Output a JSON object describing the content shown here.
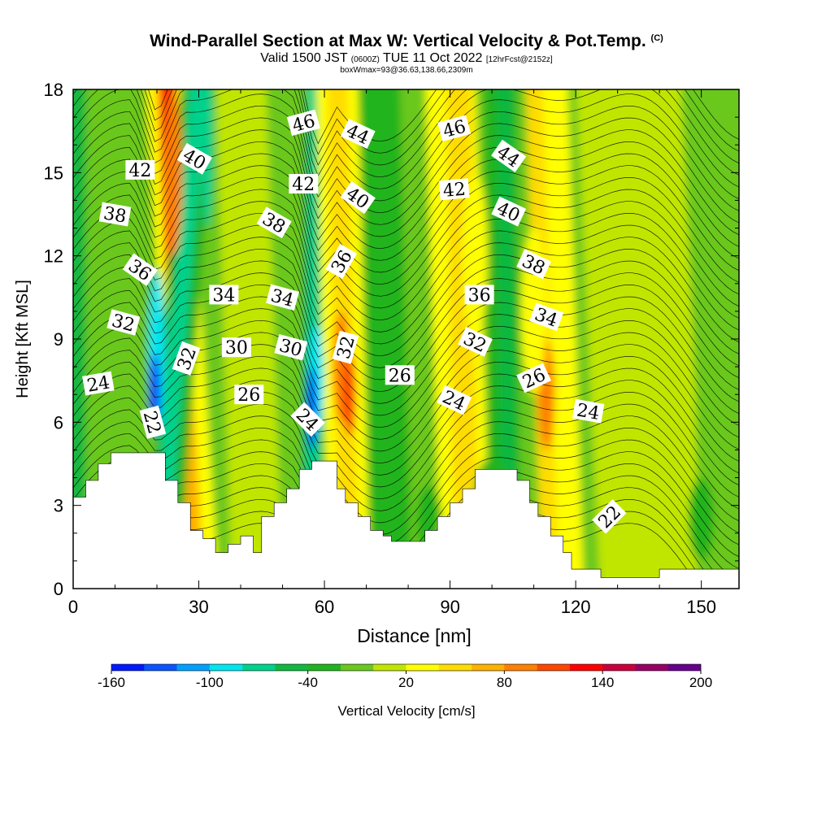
{
  "header": {
    "title": "Wind-Parallel Section at Max W: Vertical Velocity & Pot.Temp.",
    "copyright": "(C)",
    "valid_prefix": "Valid 1500 JST",
    "valid_utc": "(0600Z)",
    "valid_date": "TUE 11 Oct 2022",
    "forecast": "[12hrFcst@2152z]",
    "boxinfo": "boxWmax=93@36.63,138.66,2309m"
  },
  "chart_data": {
    "type": "heatmap",
    "xlabel": "Distance [nm]",
    "ylabel": "Height [Kft MSL]",
    "xlim": [
      0,
      159
    ],
    "ylim": [
      0,
      18
    ],
    "x_ticks": [
      "0",
      "30",
      "60",
      "90",
      "120",
      "150"
    ],
    "y_ticks": [
      "0",
      "3",
      "6",
      "9",
      "12",
      "15",
      "18"
    ],
    "colorbar": {
      "label": "Vertical Velocity [cm/s]",
      "tick_labels": [
        "-160",
        "-100",
        "-40",
        "20",
        "80",
        "140",
        "200"
      ],
      "range": [
        -160,
        200
      ],
      "step": 20,
      "colors": [
        "#0019ff",
        "#0a55ff",
        "#00a0ff",
        "#00e6f0",
        "#00d28c",
        "#10b840",
        "#20b41e",
        "#6ac81e",
        "#c0e600",
        "#ffff00",
        "#ffdc00",
        "#ffb000",
        "#ff8000",
        "#ff4600",
        "#ff0000",
        "#c8003c",
        "#960064",
        "#64008c"
      ]
    },
    "terrain_profile_kft": [
      [
        0,
        3.3
      ],
      [
        3,
        3.3
      ],
      [
        3,
        3.9
      ],
      [
        6,
        3.9
      ],
      [
        6,
        4.5
      ],
      [
        9,
        4.5
      ],
      [
        9,
        4.9
      ],
      [
        22,
        4.9
      ],
      [
        22,
        3.9
      ],
      [
        25,
        3.9
      ],
      [
        25,
        3.1
      ],
      [
        28,
        3.1
      ],
      [
        28,
        2.1
      ],
      [
        31,
        2.1
      ],
      [
        31,
        1.8
      ],
      [
        34,
        1.8
      ],
      [
        34,
        1.3
      ],
      [
        37,
        1.3
      ],
      [
        37,
        1.6
      ],
      [
        40,
        1.6
      ],
      [
        40,
        1.9
      ],
      [
        43,
        1.9
      ],
      [
        43,
        1.3
      ],
      [
        45,
        1.3
      ],
      [
        45,
        2.6
      ],
      [
        48,
        2.6
      ],
      [
        48,
        3.1
      ],
      [
        51,
        3.1
      ],
      [
        51,
        3.6
      ],
      [
        54,
        3.6
      ],
      [
        54,
        4.3
      ],
      [
        57,
        4.3
      ],
      [
        57,
        4.6
      ],
      [
        63,
        4.6
      ],
      [
        63,
        3.6
      ],
      [
        65,
        3.6
      ],
      [
        65,
        3.1
      ],
      [
        68,
        3.1
      ],
      [
        68,
        2.6
      ],
      [
        71,
        2.6
      ],
      [
        71,
        2.1
      ],
      [
        74,
        2.1
      ],
      [
        74,
        1.9
      ],
      [
        76,
        1.9
      ],
      [
        76,
        1.7
      ],
      [
        84,
        1.7
      ],
      [
        84,
        2.1
      ],
      [
        87,
        2.1
      ],
      [
        87,
        2.6
      ],
      [
        90,
        2.6
      ],
      [
        90,
        3.1
      ],
      [
        93,
        3.1
      ],
      [
        93,
        3.6
      ],
      [
        96,
        3.6
      ],
      [
        96,
        4.3
      ],
      [
        106,
        4.3
      ],
      [
        106,
        3.9
      ],
      [
        109,
        3.9
      ],
      [
        109,
        3.1
      ],
      [
        111,
        3.1
      ],
      [
        111,
        2.6
      ],
      [
        114,
        2.6
      ],
      [
        114,
        1.9
      ],
      [
        117,
        1.9
      ],
      [
        117,
        1.3
      ],
      [
        119,
        1.3
      ],
      [
        119,
        0.7
      ],
      [
        126,
        0.7
      ],
      [
        126,
        0.4
      ],
      [
        140,
        0.4
      ],
      [
        140,
        0.7
      ],
      [
        159,
        0.7
      ]
    ],
    "isentrope_labels": [
      {
        "text": "42",
        "x": 16,
        "y": 15.1,
        "angle": 0
      },
      {
        "text": "40",
        "x": 29,
        "y": 15.5,
        "angle": 30
      },
      {
        "text": "38",
        "x": 10,
        "y": 13.5,
        "angle": 10
      },
      {
        "text": "36",
        "x": 16,
        "y": 11.5,
        "angle": 35
      },
      {
        "text": "32",
        "x": 12,
        "y": 9.6,
        "angle": 15
      },
      {
        "text": "24",
        "x": 6,
        "y": 7.4,
        "angle": -10
      },
      {
        "text": "22",
        "x": 19,
        "y": 6.0,
        "angle": 75
      },
      {
        "text": "32",
        "x": 27,
        "y": 8.3,
        "angle": -70
      },
      {
        "text": "34",
        "x": 36,
        "y": 10.6,
        "angle": 0
      },
      {
        "text": "30",
        "x": 39,
        "y": 8.7,
        "angle": 0
      },
      {
        "text": "26",
        "x": 42,
        "y": 7.0,
        "angle": 0
      },
      {
        "text": "38",
        "x": 48,
        "y": 13.2,
        "angle": 30
      },
      {
        "text": "34",
        "x": 50,
        "y": 10.5,
        "angle": 15
      },
      {
        "text": "30",
        "x": 52,
        "y": 8.7,
        "angle": 15
      },
      {
        "text": "24",
        "x": 56,
        "y": 6.1,
        "angle": 45
      },
      {
        "text": "46",
        "x": 55,
        "y": 16.8,
        "angle": -15
      },
      {
        "text": "42",
        "x": 55,
        "y": 14.6,
        "angle": 0
      },
      {
        "text": "44",
        "x": 68,
        "y": 16.4,
        "angle": 25
      },
      {
        "text": "40",
        "x": 68,
        "y": 14.1,
        "angle": 35
      },
      {
        "text": "36",
        "x": 64,
        "y": 11.8,
        "angle": -60
      },
      {
        "text": "32",
        "x": 65,
        "y": 8.7,
        "angle": -75
      },
      {
        "text": "26",
        "x": 78,
        "y": 7.7,
        "angle": 0
      },
      {
        "text": "46",
        "x": 91,
        "y": 16.6,
        "angle": -15
      },
      {
        "text": "42",
        "x": 91,
        "y": 14.4,
        "angle": -5
      },
      {
        "text": "44",
        "x": 104,
        "y": 15.6,
        "angle": 35
      },
      {
        "text": "40",
        "x": 104,
        "y": 13.6,
        "angle": 25
      },
      {
        "text": "38",
        "x": 110,
        "y": 11.7,
        "angle": 25
      },
      {
        "text": "36",
        "x": 97,
        "y": 10.6,
        "angle": 0
      },
      {
        "text": "34",
        "x": 113,
        "y": 9.8,
        "angle": 20
      },
      {
        "text": "32",
        "x": 96,
        "y": 8.9,
        "angle": 25
      },
      {
        "text": "26",
        "x": 110,
        "y": 7.6,
        "angle": -25
      },
      {
        "text": "24",
        "x": 91,
        "y": 6.8,
        "angle": 25
      },
      {
        "text": "24",
        "x": 123,
        "y": 6.4,
        "angle": 10
      },
      {
        "text": "22",
        "x": 128,
        "y": 2.6,
        "angle": -45
      }
    ]
  }
}
